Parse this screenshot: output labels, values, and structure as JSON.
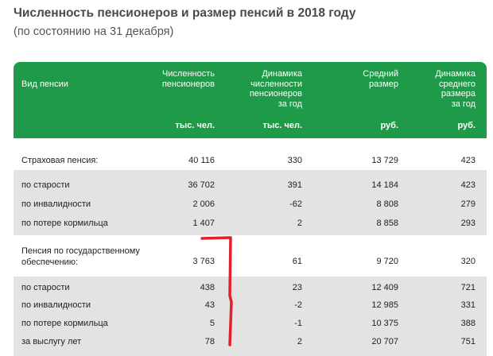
{
  "title": "Численность пенсионеров и размер пенсий в 2018 году",
  "subtitle": "(по состоянию на 31 декабря)",
  "header": {
    "columns": [
      "Вид пенсии",
      "Численность\nпенсионеров",
      "Динамика\nчисленности\nпенсионеров\nза год",
      "Средний\nразмер",
      "Динамика\nсреднего\nразмера\nза год"
    ],
    "units": [
      "тыс. чел.",
      "тыс. чел.",
      "руб.",
      "руб."
    ]
  },
  "rows": [
    {
      "name": "Страховая пенсия:",
      "count": "40  116",
      "count_change": "330",
      "avg": "13 729",
      "avg_change": "423"
    },
    {
      "name": "по старости",
      "count": "36 702",
      "count_change": "391",
      "avg": "14 184",
      "avg_change": "423"
    },
    {
      "name": "по инвалидности",
      "count": "2 006",
      "count_change": "-62",
      "avg": "8 808",
      "avg_change": "279"
    },
    {
      "name": "по потере кормильца",
      "count": "1 407",
      "count_change": "2",
      "avg": "8 858",
      "avg_change": "293"
    },
    {
      "name": "Пенсия по государственному\nобеспечению:",
      "count": "3 763",
      "count_change": "61",
      "avg": "9 720",
      "avg_change": "320"
    },
    {
      "name": "по старости",
      "count": "438",
      "count_change": "23",
      "avg": "12 409",
      "avg_change": "721"
    },
    {
      "name": "по инвалидности",
      "count": "43",
      "count_change": "-2",
      "avg": "12 985",
      "avg_change": "331"
    },
    {
      "name": "по потере кормильца",
      "count": "5",
      "count_change": "-1",
      "avg": "10 375",
      "avg_change": "388"
    },
    {
      "name": "за выслугу лет",
      "count": "78",
      "count_change": "2",
      "avg": "20 707",
      "avg_change": "751"
    }
  ],
  "colors": {
    "header_bg": "#1f9a49",
    "band_grey": "#e3e3e3",
    "annotation_red": "#e0202a"
  }
}
